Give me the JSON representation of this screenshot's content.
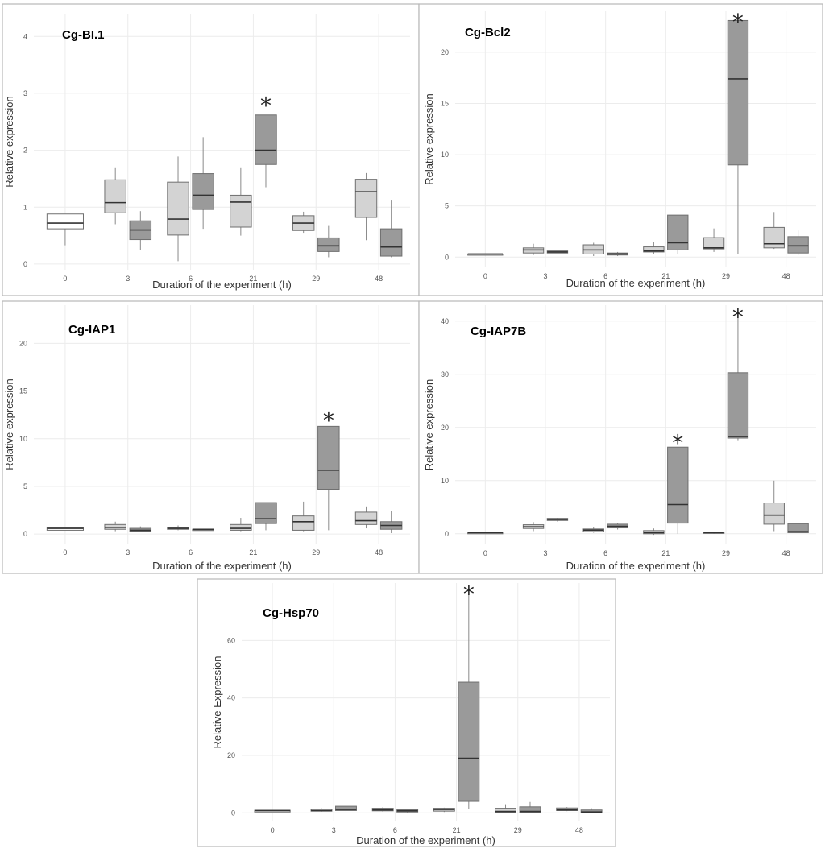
{
  "colors": {
    "none": "#ffffff",
    "low": "#d3d3d3",
    "high": "#9a9a9a"
  },
  "chart_data": [
    {
      "type": "box",
      "title": "Cg-BI.1",
      "xlabel": "Duration of the experiment (h)",
      "ylabel": "Relative expression",
      "categories": [
        "0",
        "3",
        "6",
        "21",
        "29",
        "48"
      ],
      "ylim": [
        -0.1,
        4.4
      ],
      "yticks": [
        0,
        1,
        2,
        3,
        4
      ],
      "annotations": [
        {
          "text": "*",
          "category": "21",
          "series": 1,
          "y": 2.85
        }
      ],
      "boxes": [
        {
          "category": "0",
          "series": 2,
          "min": 0.33,
          "q1": 0.62,
          "median": 0.72,
          "q3": 0.88,
          "max": 0.88
        },
        {
          "category": "3",
          "series": 0,
          "min": 0.7,
          "q1": 0.9,
          "median": 1.08,
          "q3": 1.48,
          "max": 1.7
        },
        {
          "category": "3",
          "series": 1,
          "min": 0.24,
          "q1": 0.43,
          "median": 0.6,
          "q3": 0.76,
          "max": 0.93
        },
        {
          "category": "6",
          "series": 0,
          "min": 0.05,
          "q1": 0.51,
          "median": 0.79,
          "q3": 1.44,
          "max": 1.89
        },
        {
          "category": "6",
          "series": 1,
          "min": 0.62,
          "q1": 0.96,
          "median": 1.21,
          "q3": 1.59,
          "max": 2.23
        },
        {
          "category": "21",
          "series": 0,
          "min": 0.5,
          "q1": 0.65,
          "median": 1.09,
          "q3": 1.21,
          "max": 1.7
        },
        {
          "category": "21",
          "series": 1,
          "min": 1.35,
          "q1": 1.75,
          "median": 2.0,
          "q3": 2.62,
          "max": 2.62
        },
        {
          "category": "29",
          "series": 0,
          "min": 0.55,
          "q1": 0.59,
          "median": 0.72,
          "q3": 0.85,
          "max": 0.92
        },
        {
          "category": "29",
          "series": 1,
          "min": 0.12,
          "q1": 0.22,
          "median": 0.32,
          "q3": 0.46,
          "max": 0.67
        },
        {
          "category": "48",
          "series": 0,
          "min": 0.42,
          "q1": 0.82,
          "median": 1.27,
          "q3": 1.49,
          "max": 1.6
        },
        {
          "category": "48",
          "series": 1,
          "min": 0.12,
          "q1": 0.14,
          "median": 0.3,
          "q3": 0.62,
          "max": 1.13
        }
      ]
    },
    {
      "type": "box",
      "title": "Cg-Bcl2",
      "xlabel": "Duration of the experiment (h)",
      "ylabel": "Relative expression",
      "categories": [
        "0",
        "3",
        "6",
        "21",
        "29",
        "48"
      ],
      "ylim": [
        -1,
        24
      ],
      "yticks": [
        0,
        5,
        10,
        15,
        20
      ],
      "annotations": [
        {
          "text": "*",
          "category": "29",
          "series": 1,
          "y": 23.3
        }
      ],
      "boxes": [
        {
          "category": "0",
          "series": 2,
          "min": 0.3,
          "q1": 0.3,
          "median": 0.3,
          "q3": 0.3,
          "max": 0.3
        },
        {
          "category": "3",
          "series": 0,
          "min": 0.2,
          "q1": 0.4,
          "median": 0.7,
          "q3": 0.9,
          "max": 1.3
        },
        {
          "category": "3",
          "series": 1,
          "min": 0.4,
          "q1": 0.4,
          "median": 0.5,
          "q3": 0.6,
          "max": 0.6
        },
        {
          "category": "6",
          "series": 0,
          "min": 0.1,
          "q1": 0.3,
          "median": 0.7,
          "q3": 1.2,
          "max": 1.4
        },
        {
          "category": "6",
          "series": 1,
          "min": 0.1,
          "q1": 0.2,
          "median": 0.3,
          "q3": 0.4,
          "max": 0.5
        },
        {
          "category": "21",
          "series": 0,
          "min": 0.3,
          "q1": 0.5,
          "median": 0.6,
          "q3": 1.0,
          "max": 1.5
        },
        {
          "category": "21",
          "series": 1,
          "min": 0.3,
          "q1": 0.7,
          "median": 1.4,
          "q3": 4.1,
          "max": 4.1
        },
        {
          "category": "29",
          "series": 0,
          "min": 0.5,
          "q1": 0.8,
          "median": 0.9,
          "q3": 1.9,
          "max": 2.8
        },
        {
          "category": "29",
          "series": 1,
          "min": 0.3,
          "q1": 9.0,
          "median": 17.4,
          "q3": 23.1,
          "max": 23.1
        },
        {
          "category": "48",
          "series": 0,
          "min": 0.8,
          "q1": 0.9,
          "median": 1.3,
          "q3": 2.9,
          "max": 4.4
        },
        {
          "category": "48",
          "series": 1,
          "min": 0.2,
          "q1": 0.4,
          "median": 1.1,
          "q3": 2.0,
          "max": 2.6
        }
      ]
    },
    {
      "type": "box",
      "title": "Cg-IAP1",
      "xlabel": "Duration of the experiment (h)",
      "ylabel": "Relative expression",
      "categories": [
        "0",
        "3",
        "6",
        "21",
        "29",
        "48"
      ],
      "ylim": [
        -1,
        24
      ],
      "yticks": [
        0,
        5,
        10,
        15,
        20
      ],
      "annotations": [
        {
          "text": "*",
          "category": "29",
          "series": 1,
          "y": 12.3
        }
      ],
      "boxes": [
        {
          "category": "0",
          "series": 2,
          "min": 0.4,
          "q1": 0.4,
          "median": 0.6,
          "q3": 0.7,
          "max": 0.7
        },
        {
          "category": "3",
          "series": 0,
          "min": 0.3,
          "q1": 0.5,
          "median": 0.7,
          "q3": 1.0,
          "max": 1.3
        },
        {
          "category": "3",
          "series": 1,
          "min": 0.2,
          "q1": 0.3,
          "median": 0.4,
          "q3": 0.6,
          "max": 0.8
        },
        {
          "category": "6",
          "series": 0,
          "min": 0.4,
          "q1": 0.5,
          "median": 0.6,
          "q3": 0.7,
          "max": 0.9
        },
        {
          "category": "6",
          "series": 1,
          "min": 0.4,
          "q1": 0.4,
          "median": 0.5,
          "q3": 0.5,
          "max": 0.5
        },
        {
          "category": "21",
          "series": 0,
          "min": 0.3,
          "q1": 0.4,
          "median": 0.6,
          "q3": 1.0,
          "max": 1.7
        },
        {
          "category": "21",
          "series": 1,
          "min": 0.4,
          "q1": 1.1,
          "median": 1.6,
          "q3": 3.3,
          "max": 3.3
        },
        {
          "category": "29",
          "series": 0,
          "min": 0.3,
          "q1": 0.4,
          "median": 1.3,
          "q3": 1.9,
          "max": 3.4
        },
        {
          "category": "29",
          "series": 1,
          "min": 0.4,
          "q1": 4.7,
          "median": 6.7,
          "q3": 11.3,
          "max": 11.3
        },
        {
          "category": "48",
          "series": 0,
          "min": 0.6,
          "q1": 1.0,
          "median": 1.4,
          "q3": 2.3,
          "max": 2.9
        },
        {
          "category": "48",
          "series": 1,
          "min": 0.1,
          "q1": 0.5,
          "median": 0.9,
          "q3": 1.3,
          "max": 2.4
        }
      ]
    },
    {
      "type": "box",
      "title": "Cg-IAP7B",
      "xlabel": "Duration of the experiment (h)",
      "ylabel": "Relative expression",
      "categories": [
        "0",
        "3",
        "6",
        "21",
        "29",
        "48"
      ],
      "ylim": [
        -2,
        43
      ],
      "yticks": [
        0,
        10,
        20,
        30,
        40
      ],
      "annotations": [
        {
          "text": "*",
          "category": "21",
          "series": 1,
          "y": 17.8
        },
        {
          "text": "*",
          "category": "29",
          "series": 1,
          "y": 41.5
        }
      ],
      "boxes": [
        {
          "category": "0",
          "series": 2,
          "min": 0.0,
          "q1": 0.0,
          "median": 0.2,
          "q3": 0.3,
          "max": 0.3
        },
        {
          "category": "3",
          "series": 0,
          "min": 0.5,
          "q1": 1.0,
          "median": 1.3,
          "q3": 1.7,
          "max": 2.2
        },
        {
          "category": "3",
          "series": 1,
          "min": 2.3,
          "q1": 2.5,
          "median": 2.7,
          "q3": 2.9,
          "max": 3.0
        },
        {
          "category": "6",
          "series": 0,
          "min": 0.2,
          "q1": 0.4,
          "median": 0.7,
          "q3": 0.9,
          "max": 1.2
        },
        {
          "category": "6",
          "series": 1,
          "min": 0.8,
          "q1": 1.1,
          "median": 1.4,
          "q3": 1.8,
          "max": 2.0
        },
        {
          "category": "21",
          "series": 0,
          "min": -0.2,
          "q1": 0.0,
          "median": 0.2,
          "q3": 0.6,
          "max": 1.0
        },
        {
          "category": "21",
          "series": 1,
          "min": 0.0,
          "q1": 2.0,
          "median": 5.5,
          "q3": 16.3,
          "max": 16.3
        },
        {
          "category": "29",
          "series": 0,
          "min": 0.0,
          "q1": 0.1,
          "median": 0.2,
          "q3": 0.3,
          "max": 0.3
        },
        {
          "category": "29",
          "series": 1,
          "min": 17.6,
          "q1": 18.0,
          "median": 18.3,
          "q3": 30.3,
          "max": 42.0
        },
        {
          "category": "48",
          "series": 0,
          "min": 0.5,
          "q1": 1.8,
          "median": 3.5,
          "q3": 5.8,
          "max": 10.0
        },
        {
          "category": "48",
          "series": 1,
          "min": 0.2,
          "q1": 0.2,
          "median": 0.4,
          "q3": 1.9,
          "max": 1.9
        }
      ]
    },
    {
      "type": "box",
      "title": "Cg-Hsp70",
      "xlabel": "Duration of the experiment (h)",
      "ylabel": "Relative Expression",
      "categories": [
        "0",
        "3",
        "6",
        "21",
        "29",
        "48"
      ],
      "ylim": [
        -3,
        80
      ],
      "yticks": [
        0,
        20,
        40,
        60
      ],
      "annotations": [
        {
          "text": "*",
          "category": "21",
          "series": 1,
          "y": 77.5
        }
      ],
      "boxes": [
        {
          "category": "0",
          "series": 2,
          "min": 0.3,
          "q1": 0.3,
          "median": 0.8,
          "q3": 0.9,
          "max": 0.9
        },
        {
          "category": "3",
          "series": 0,
          "min": 0.4,
          "q1": 0.6,
          "median": 0.8,
          "q3": 1.3,
          "max": 1.6
        },
        {
          "category": "3",
          "series": 1,
          "min": 0.4,
          "q1": 0.8,
          "median": 1.2,
          "q3": 2.3,
          "max": 2.6
        },
        {
          "category": "6",
          "series": 0,
          "min": 0.4,
          "q1": 0.7,
          "median": 1.0,
          "q3": 1.6,
          "max": 2.0
        },
        {
          "category": "6",
          "series": 1,
          "min": 0.1,
          "q1": 0.3,
          "median": 0.7,
          "q3": 1.1,
          "max": 1.4
        },
        {
          "category": "21",
          "series": 0,
          "min": 0.3,
          "q1": 0.6,
          "median": 1.2,
          "q3": 1.6,
          "max": 1.8
        },
        {
          "category": "21",
          "series": 1,
          "min": 1.5,
          "q1": 4.0,
          "median": 19.0,
          "q3": 45.5,
          "max": 76.0
        },
        {
          "category": "29",
          "series": 0,
          "min": 0.1,
          "q1": 0.2,
          "median": 0.5,
          "q3": 1.6,
          "max": 3.0
        },
        {
          "category": "29",
          "series": 1,
          "min": 0.1,
          "q1": 0.2,
          "median": 0.5,
          "q3": 2.1,
          "max": 3.8
        },
        {
          "category": "48",
          "series": 0,
          "min": 0.6,
          "q1": 0.8,
          "median": 1.0,
          "q3": 1.7,
          "max": 2.0
        },
        {
          "category": "48",
          "series": 1,
          "min": 0.0,
          "q1": 0.1,
          "median": 0.3,
          "q3": 1.0,
          "max": 1.6
        }
      ]
    }
  ]
}
